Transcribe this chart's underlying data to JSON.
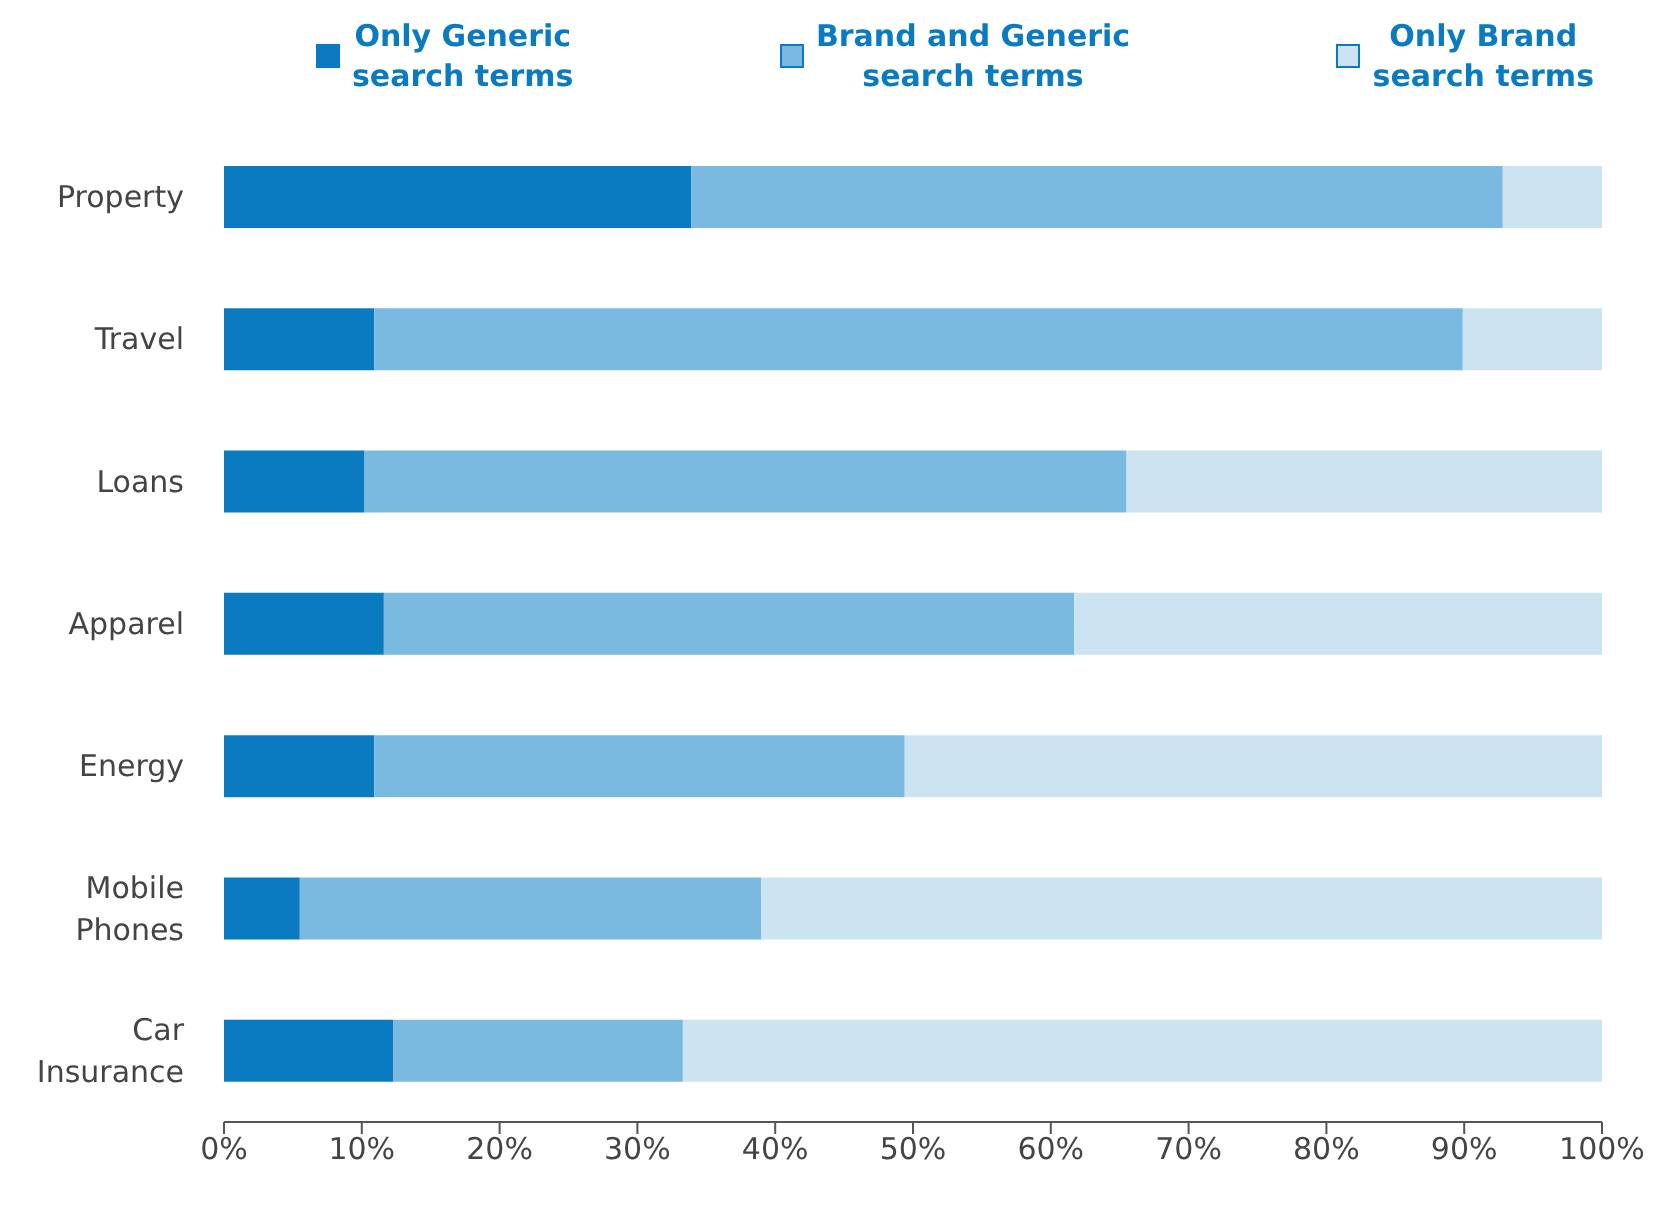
{
  "chart_data": {
    "type": "bar",
    "orientation": "horizontal",
    "stacked": true,
    "categories": [
      "Property",
      "Travel",
      "Loans",
      "Apparel",
      "Energy",
      "Mobile Phones",
      "Car Insurance"
    ],
    "series": [
      {
        "name": "Only Generic search terms",
        "color": "#0a7bc1",
        "values": [
          33.9,
          10.9,
          10.2,
          11.6,
          10.9,
          5.5,
          12.3
        ]
      },
      {
        "name": "Brand and Generic search terms",
        "color": "#7ab9e0",
        "values": [
          58.9,
          79.0,
          55.3,
          50.1,
          38.5,
          33.5,
          21.0
        ]
      },
      {
        "name": "Only Brand search terms",
        "color": "#cce4f2",
        "values": [
          7.2,
          10.1,
          34.5,
          38.3,
          50.6,
          61.0,
          66.7
        ]
      }
    ],
    "xlim": [
      0,
      100
    ],
    "xticks": [
      {
        "value": 0,
        "label": "0%"
      },
      {
        "value": 10,
        "label": "10%"
      },
      {
        "value": 20,
        "label": "20%"
      },
      {
        "value": 30,
        "label": "30%"
      },
      {
        "value": 40,
        "label": "40%"
      },
      {
        "value": 50,
        "label": "50%"
      },
      {
        "value": 60,
        "label": "60%"
      },
      {
        "value": 70,
        "label": "70%"
      },
      {
        "value": 80,
        "label": "80%"
      },
      {
        "value": 90,
        "label": "90%"
      },
      {
        "value": 100,
        "label": "100%"
      }
    ],
    "legend": "top",
    "grid": false
  }
}
